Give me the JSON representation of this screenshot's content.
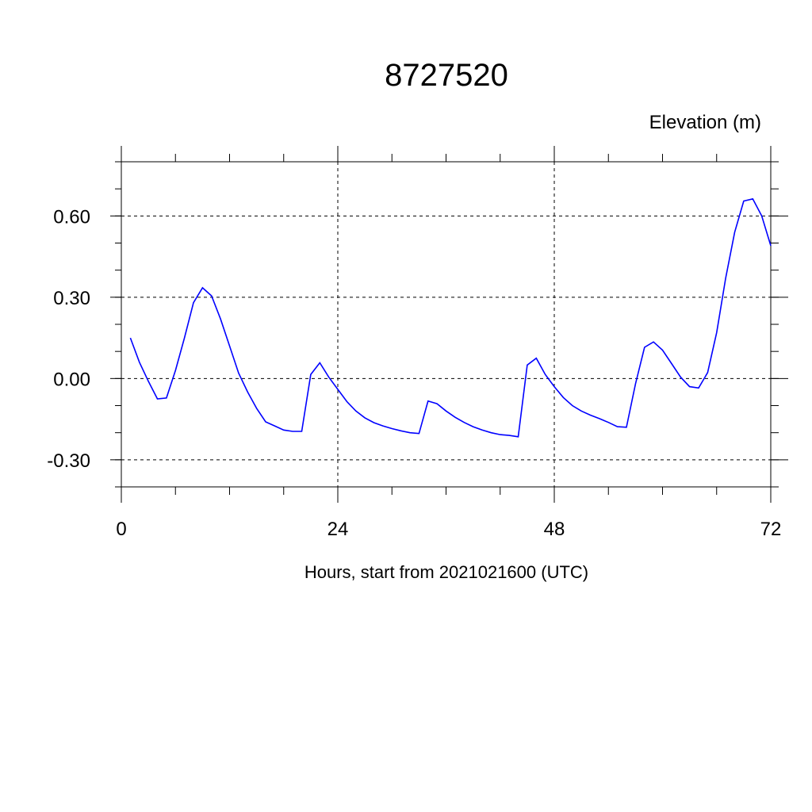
{
  "chart_data": {
    "type": "line",
    "title": "8727520",
    "ylabel": "Elevation (m)",
    "xlabel": "Hours, start from 2021021600 (UTC)",
    "xlim": [
      0,
      72
    ],
    "ylim": [
      -0.4,
      0.8
    ],
    "xticks": [
      0,
      24,
      48,
      72
    ],
    "xtick_labels": [
      "0",
      "24",
      "48",
      "72"
    ],
    "yticks": [
      0.6,
      0.3,
      0.0,
      -0.3
    ],
    "ytick_labels": [
      "0.60",
      "0.30",
      "0.00",
      "-0.30"
    ],
    "grid": true,
    "line_color": "#0000ff",
    "series": [
      {
        "x": [
          1,
          2,
          3,
          4,
          5,
          6,
          7,
          8,
          9,
          10,
          11,
          12,
          13,
          14,
          15,
          16,
          17,
          18,
          19,
          20,
          21,
          22,
          23,
          24,
          25,
          26,
          27,
          28,
          29,
          30,
          31,
          32,
          33,
          34,
          35,
          36,
          37,
          38,
          39,
          40,
          41,
          42,
          43,
          44,
          45,
          46,
          47,
          48,
          49,
          50,
          51,
          52,
          53,
          54,
          55,
          56,
          57,
          58,
          59,
          60,
          61,
          62,
          63,
          64,
          65,
          66,
          67,
          68,
          69,
          70,
          71,
          72
        ],
        "values": [
          0.15,
          0.06,
          -0.01,
          -0.075,
          -0.072,
          0.03,
          0.15,
          0.28,
          0.335,
          0.305,
          0.22,
          0.12,
          0.02,
          -0.05,
          -0.11,
          -0.16,
          -0.175,
          -0.19,
          -0.195,
          -0.195,
          0.015,
          0.058,
          0.005,
          -0.04,
          -0.085,
          -0.12,
          -0.145,
          -0.163,
          -0.175,
          -0.185,
          -0.193,
          -0.2,
          -0.203,
          -0.083,
          -0.093,
          -0.12,
          -0.143,
          -0.162,
          -0.178,
          -0.19,
          -0.2,
          -0.207,
          -0.21,
          -0.215,
          0.05,
          0.075,
          0.015,
          -0.03,
          -0.07,
          -0.1,
          -0.12,
          -0.135,
          -0.148,
          -0.162,
          -0.178,
          -0.18,
          -0.02,
          0.115,
          0.135,
          0.105,
          0.055,
          0.005,
          -0.03,
          -0.035,
          0.022,
          0.17,
          0.37,
          0.54,
          0.655,
          0.663,
          0.6,
          0.49
        ]
      }
    ]
  }
}
